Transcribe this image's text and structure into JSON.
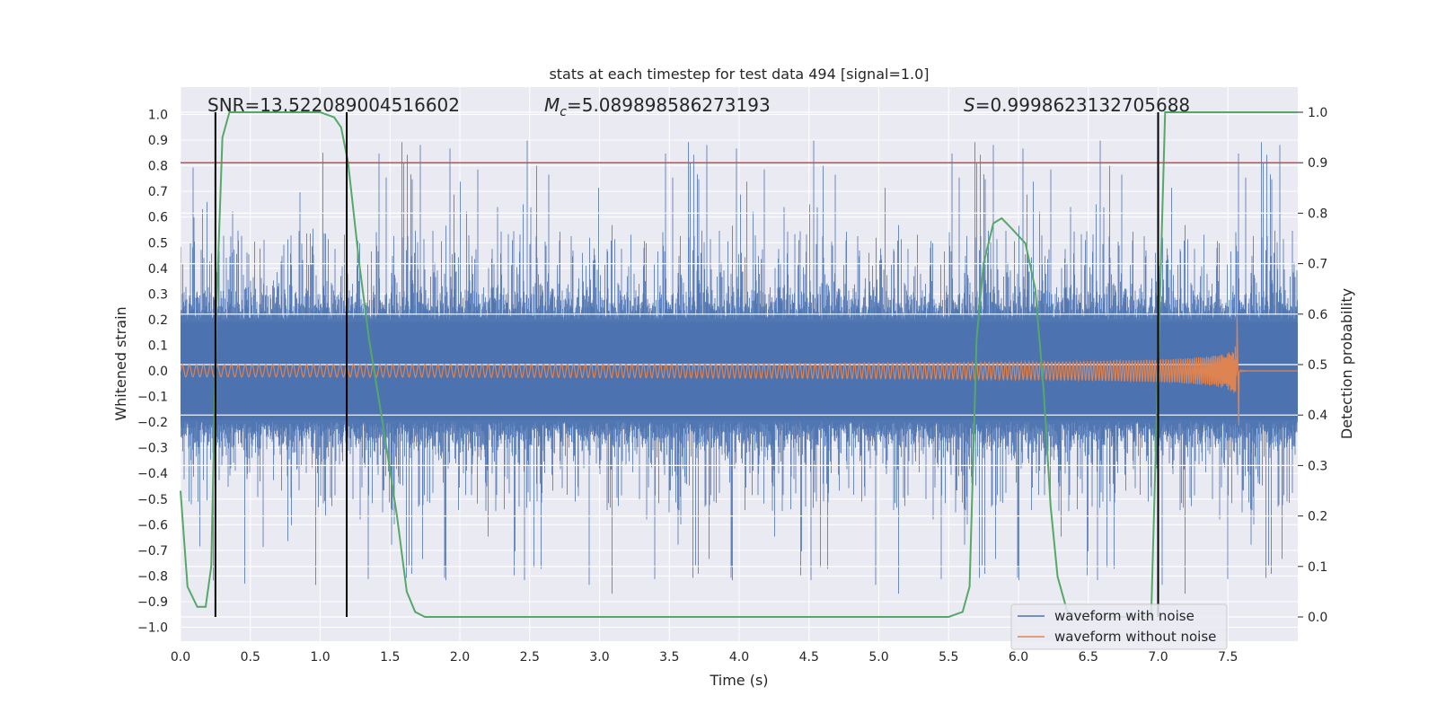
{
  "chart_data": {
    "type": "line",
    "title": "stats at each timestep for test data 494 [signal=1.0]",
    "xlabel": "Time (s)",
    "ylabel": "Whitened strain",
    "y2label": "Detection probability",
    "xlim": [
      0.0,
      8.0
    ],
    "ylim": [
      -1.08,
      1.08
    ],
    "y2lim": [
      -0.05,
      1.03
    ],
    "xticks": [
      "0.0",
      "0.5",
      "1.0",
      "1.5",
      "2.0",
      "2.5",
      "3.0",
      "3.5",
      "4.0",
      "4.5",
      "5.0",
      "5.5",
      "6.0",
      "6.5",
      "7.0",
      "7.5"
    ],
    "yticks": [
      "1.0",
      "0.9",
      "0.8",
      "0.7",
      "0.6",
      "0.5",
      "0.4",
      "0.3",
      "0.2",
      "0.1",
      "0.0",
      "-0.1",
      "-0.2",
      "-0.3",
      "-0.4",
      "-0.5",
      "-0.6",
      "-0.7",
      "-0.8",
      "-0.9",
      "-1.0"
    ],
    "y2ticks": [
      "0.0",
      "0.1",
      "0.2",
      "0.3",
      "0.4",
      "0.5",
      "0.6",
      "0.7",
      "0.8",
      "0.9",
      "1.0"
    ],
    "annotations": {
      "snr": "SNR=13.522089004516602",
      "mc_symbol": "M",
      "mc_sub": "c",
      "mc_value": "=5.089898586273193",
      "s_symbol": "S",
      "s_value": "=0.9998623132705688"
    },
    "threshold_line": {
      "value": 0.9,
      "axis": "right",
      "color": "#c44e52"
    },
    "vertical_markers_s": [
      0.25,
      1.19,
      7.0
    ],
    "legend": [
      "waveform with noise",
      "waveform without noise"
    ],
    "legend_position": "lower-right",
    "series": [
      {
        "name": "waveform with noise",
        "color": "#4c72b0",
        "description": "dense whitened noise, band approx ±0.35 with spikes up to ±0.9"
      },
      {
        "name": "waveform without noise",
        "color": "#dd8452",
        "chirp_start_amplitude": 0.03,
        "chirp_peak_amplitude": 0.22,
        "merger_time_s": 7.58
      },
      {
        "name": "detection probability",
        "axis": "right",
        "color": "#55a868",
        "x": [
          0.0,
          0.05,
          0.12,
          0.18,
          0.22,
          0.26,
          0.3,
          0.35,
          0.4,
          0.6,
          0.8,
          1.0,
          1.1,
          1.15,
          1.2,
          1.28,
          1.35,
          1.45,
          1.55,
          1.62,
          1.68,
          1.75,
          2.0,
          3.0,
          4.0,
          5.0,
          5.5,
          5.6,
          5.65,
          5.7,
          5.75,
          5.82,
          5.88,
          5.95,
          6.05,
          6.12,
          6.18,
          6.23,
          6.28,
          6.35,
          6.5,
          6.8,
          6.95,
          7.05,
          7.3,
          7.6,
          8.0
        ],
        "y": [
          0.25,
          0.06,
          0.02,
          0.02,
          0.1,
          0.63,
          0.95,
          1.0,
          1.0,
          1.0,
          1.0,
          1.0,
          0.99,
          0.97,
          0.9,
          0.7,
          0.55,
          0.38,
          0.2,
          0.05,
          0.01,
          0.0,
          0.0,
          0.0,
          0.0,
          0.0,
          0.0,
          0.01,
          0.06,
          0.55,
          0.7,
          0.78,
          0.79,
          0.77,
          0.74,
          0.65,
          0.45,
          0.22,
          0.08,
          0.01,
          0.0,
          0.0,
          0.0,
          1.0,
          1.0,
          1.0,
          1.0
        ]
      }
    ]
  }
}
